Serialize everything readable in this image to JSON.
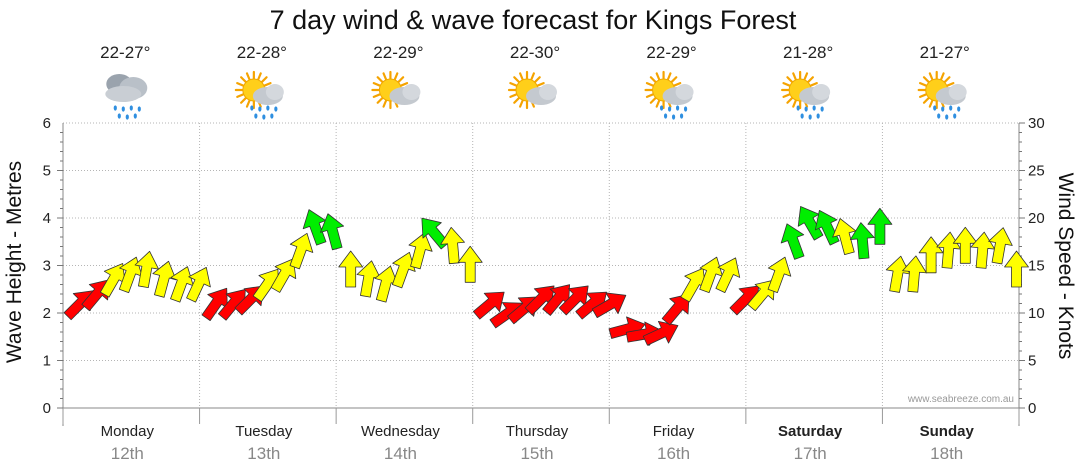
{
  "chart_data": {
    "type": "line",
    "title": "7 day wind & wave forecast for Kings Forest",
    "ylabel_left": "Wave Height - Metres",
    "ylabel_right": "Wind Speed - Knots",
    "ylim_left": [
      0,
      6
    ],
    "ylim_right": [
      0,
      30
    ],
    "yticks_left": [
      "0",
      "1",
      "2",
      "3",
      "4",
      "5",
      "6"
    ],
    "yticks_right": [
      "0",
      "5",
      "10",
      "15",
      "20",
      "25",
      "30"
    ],
    "grid": true,
    "credit": "www.seabreeze.com.au",
    "days": [
      {
        "day": "Monday",
        "date": "12th",
        "temp": "22-27°",
        "weather": "showers",
        "bold": false
      },
      {
        "day": "Tuesday",
        "date": "13th",
        "temp": "22-28°",
        "weather": "sun-showers",
        "bold": false
      },
      {
        "day": "Wednesday",
        "date": "14th",
        "temp": "22-29°",
        "weather": "partly-cloudy",
        "bold": false
      },
      {
        "day": "Thursday",
        "date": "15th",
        "temp": "22-30°",
        "weather": "partly-cloudy",
        "bold": false
      },
      {
        "day": "Friday",
        "date": "16th",
        "temp": "22-29°",
        "weather": "sun-showers",
        "bold": false
      },
      {
        "day": "Saturday",
        "date": "17th",
        "temp": "21-28°",
        "weather": "sun-showers",
        "bold": true
      },
      {
        "day": "Sunday",
        "date": "18th",
        "temp": "21-27°",
        "weather": "sun-showers",
        "bold": true
      }
    ],
    "colors": {
      "light": "#ff0000",
      "moderate": "#ffff00",
      "strong": "#00ee00"
    },
    "wind_series": {
      "name": "Wind Speed - Knots",
      "unit": "knots",
      "points": [
        {
          "t": 0.0,
          "v": 10.5,
          "dir": 225,
          "c": "light"
        },
        {
          "t": 0.125,
          "v": 11.5,
          "dir": 220,
          "c": "light"
        },
        {
          "t": 0.25,
          "v": 13.0,
          "dir": 210,
          "c": "moderate"
        },
        {
          "t": 0.375,
          "v": 13.5,
          "dir": 200,
          "c": "moderate"
        },
        {
          "t": 0.5,
          "v": 14.0,
          "dir": 190,
          "c": "moderate"
        },
        {
          "t": 0.625,
          "v": 13.0,
          "dir": 195,
          "c": "moderate"
        },
        {
          "t": 0.75,
          "v": 12.5,
          "dir": 200,
          "c": "moderate"
        },
        {
          "t": 0.875,
          "v": 12.5,
          "dir": 205,
          "c": "moderate"
        },
        {
          "t": 1.0,
          "v": 10.5,
          "dir": 215,
          "c": "light"
        },
        {
          "t": 1.125,
          "v": 10.5,
          "dir": 220,
          "c": "light"
        },
        {
          "t": 1.25,
          "v": 11.0,
          "dir": 225,
          "c": "light"
        },
        {
          "t": 1.375,
          "v": 12.5,
          "dir": 215,
          "c": "moderate"
        },
        {
          "t": 1.5,
          "v": 13.5,
          "dir": 210,
          "c": "moderate"
        },
        {
          "t": 1.625,
          "v": 16.0,
          "dir": 200,
          "c": "moderate"
        },
        {
          "t": 1.75,
          "v": 18.5,
          "dir": 160,
          "c": "strong"
        },
        {
          "t": 1.875,
          "v": 18.0,
          "dir": 165,
          "c": "strong"
        },
        {
          "t": 2.0,
          "v": 14.0,
          "dir": 180,
          "c": "moderate"
        },
        {
          "t": 2.125,
          "v": 13.0,
          "dir": 190,
          "c": "moderate"
        },
        {
          "t": 2.25,
          "v": 12.5,
          "dir": 195,
          "c": "moderate"
        },
        {
          "t": 2.375,
          "v": 14.0,
          "dir": 200,
          "c": "moderate"
        },
        {
          "t": 2.5,
          "v": 16.0,
          "dir": 195,
          "c": "moderate"
        },
        {
          "t": 2.625,
          "v": 18.0,
          "dir": 140,
          "c": "strong"
        },
        {
          "t": 2.75,
          "v": 16.5,
          "dir": 175,
          "c": "moderate"
        },
        {
          "t": 2.875,
          "v": 14.5,
          "dir": 180,
          "c": "moderate"
        },
        {
          "t": 3.0,
          "v": 10.5,
          "dir": 230,
          "c": "light"
        },
        {
          "t": 3.125,
          "v": 9.5,
          "dir": 235,
          "c": "light"
        },
        {
          "t": 3.25,
          "v": 10.0,
          "dir": 230,
          "c": "light"
        },
        {
          "t": 3.375,
          "v": 11.0,
          "dir": 225,
          "c": "light"
        },
        {
          "t": 3.5,
          "v": 11.0,
          "dir": 220,
          "c": "light"
        },
        {
          "t": 3.625,
          "v": 11.0,
          "dir": 225,
          "c": "light"
        },
        {
          "t": 3.75,
          "v": 10.5,
          "dir": 230,
          "c": "light"
        },
        {
          "t": 3.875,
          "v": 10.5,
          "dir": 240,
          "c": "light"
        },
        {
          "t": 4.0,
          "v": 8.0,
          "dir": 255,
          "c": "light"
        },
        {
          "t": 4.125,
          "v": 7.5,
          "dir": 260,
          "c": "light"
        },
        {
          "t": 4.25,
          "v": 7.5,
          "dir": 245,
          "c": "light"
        },
        {
          "t": 4.375,
          "v": 10.0,
          "dir": 220,
          "c": "light"
        },
        {
          "t": 4.5,
          "v": 12.5,
          "dir": 210,
          "c": "moderate"
        },
        {
          "t": 4.625,
          "v": 13.5,
          "dir": 200,
          "c": "moderate"
        },
        {
          "t": 4.75,
          "v": 13.5,
          "dir": 205,
          "c": "moderate"
        },
        {
          "t": 4.875,
          "v": 11.0,
          "dir": 225,
          "c": "light"
        },
        {
          "t": 5.0,
          "v": 11.5,
          "dir": 220,
          "c": "moderate"
        },
        {
          "t": 5.125,
          "v": 13.5,
          "dir": 200,
          "c": "moderate"
        },
        {
          "t": 5.25,
          "v": 17.0,
          "dir": 160,
          "c": "strong"
        },
        {
          "t": 5.375,
          "v": 19.0,
          "dir": 150,
          "c": "strong"
        },
        {
          "t": 5.5,
          "v": 18.5,
          "dir": 155,
          "c": "strong"
        },
        {
          "t": 5.625,
          "v": 17.5,
          "dir": 165,
          "c": "moderate"
        },
        {
          "t": 5.75,
          "v": 17.0,
          "dir": 175,
          "c": "strong"
        },
        {
          "t": 5.875,
          "v": 18.5,
          "dir": 180,
          "c": "strong"
        },
        {
          "t": 6.0,
          "v": 13.5,
          "dir": 190,
          "c": "moderate"
        },
        {
          "t": 6.125,
          "v": 13.5,
          "dir": 185,
          "c": "moderate"
        },
        {
          "t": 6.25,
          "v": 15.5,
          "dir": 180,
          "c": "moderate"
        },
        {
          "t": 6.375,
          "v": 16.0,
          "dir": 185,
          "c": "moderate"
        },
        {
          "t": 6.5,
          "v": 16.5,
          "dir": 180,
          "c": "moderate"
        },
        {
          "t": 6.625,
          "v": 16.0,
          "dir": 185,
          "c": "moderate"
        },
        {
          "t": 6.75,
          "v": 16.5,
          "dir": 190,
          "c": "moderate"
        },
        {
          "t": 6.875,
          "v": 14.0,
          "dir": 180,
          "c": "moderate"
        }
      ]
    }
  }
}
